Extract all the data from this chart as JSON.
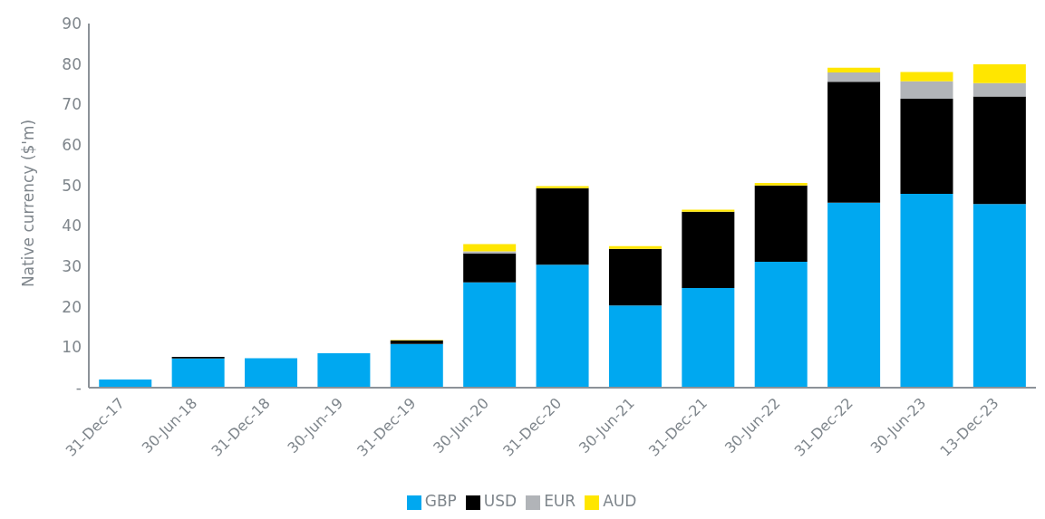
{
  "chart_data": {
    "type": "bar",
    "stacked": true,
    "ylabel": "Native currency ($'m)",
    "categories": [
      "31-Dec-17",
      "30-Jun-18",
      "31-Dec-18",
      "30-Jun-19",
      "31-Dec-19",
      "30-Jun-20",
      "31-Dec-20",
      "30-Jun-21",
      "31-Dec-21",
      "30-Jun-22",
      "31-Dec-22",
      "30-Jun-23",
      "13-Dec-23"
    ],
    "series": [
      {
        "name": "GBP",
        "color": "#00a8f0",
        "values": [
          2.0,
          7.2,
          7.3,
          8.5,
          10.8,
          26.0,
          30.4,
          20.3,
          24.6,
          31.1,
          45.7,
          47.9,
          45.4
        ]
      },
      {
        "name": "USD",
        "color": "#000000",
        "values": [
          null,
          0.4,
          null,
          null,
          0.9,
          7.2,
          18.9,
          14.0,
          18.9,
          18.9,
          29.9,
          23.5,
          26.6
        ]
      },
      {
        "name": "EUR",
        "color": "#b1b4b8",
        "values": [
          null,
          null,
          null,
          null,
          null,
          0.5,
          null,
          null,
          null,
          null,
          2.3,
          4.3,
          3.3
        ]
      },
      {
        "name": "AUD",
        "color": "#ffe600",
        "values": [
          null,
          null,
          null,
          null,
          0.1,
          1.8,
          0.5,
          0.7,
          0.5,
          0.6,
          1.2,
          2.3,
          4.6
        ]
      }
    ],
    "ylim": [
      0,
      90
    ],
    "yticks": [
      {
        "value": 0,
        "label": "-"
      },
      10,
      20,
      30,
      40,
      50,
      60,
      70,
      80,
      90
    ],
    "grid": false,
    "legend": "bottom"
  }
}
